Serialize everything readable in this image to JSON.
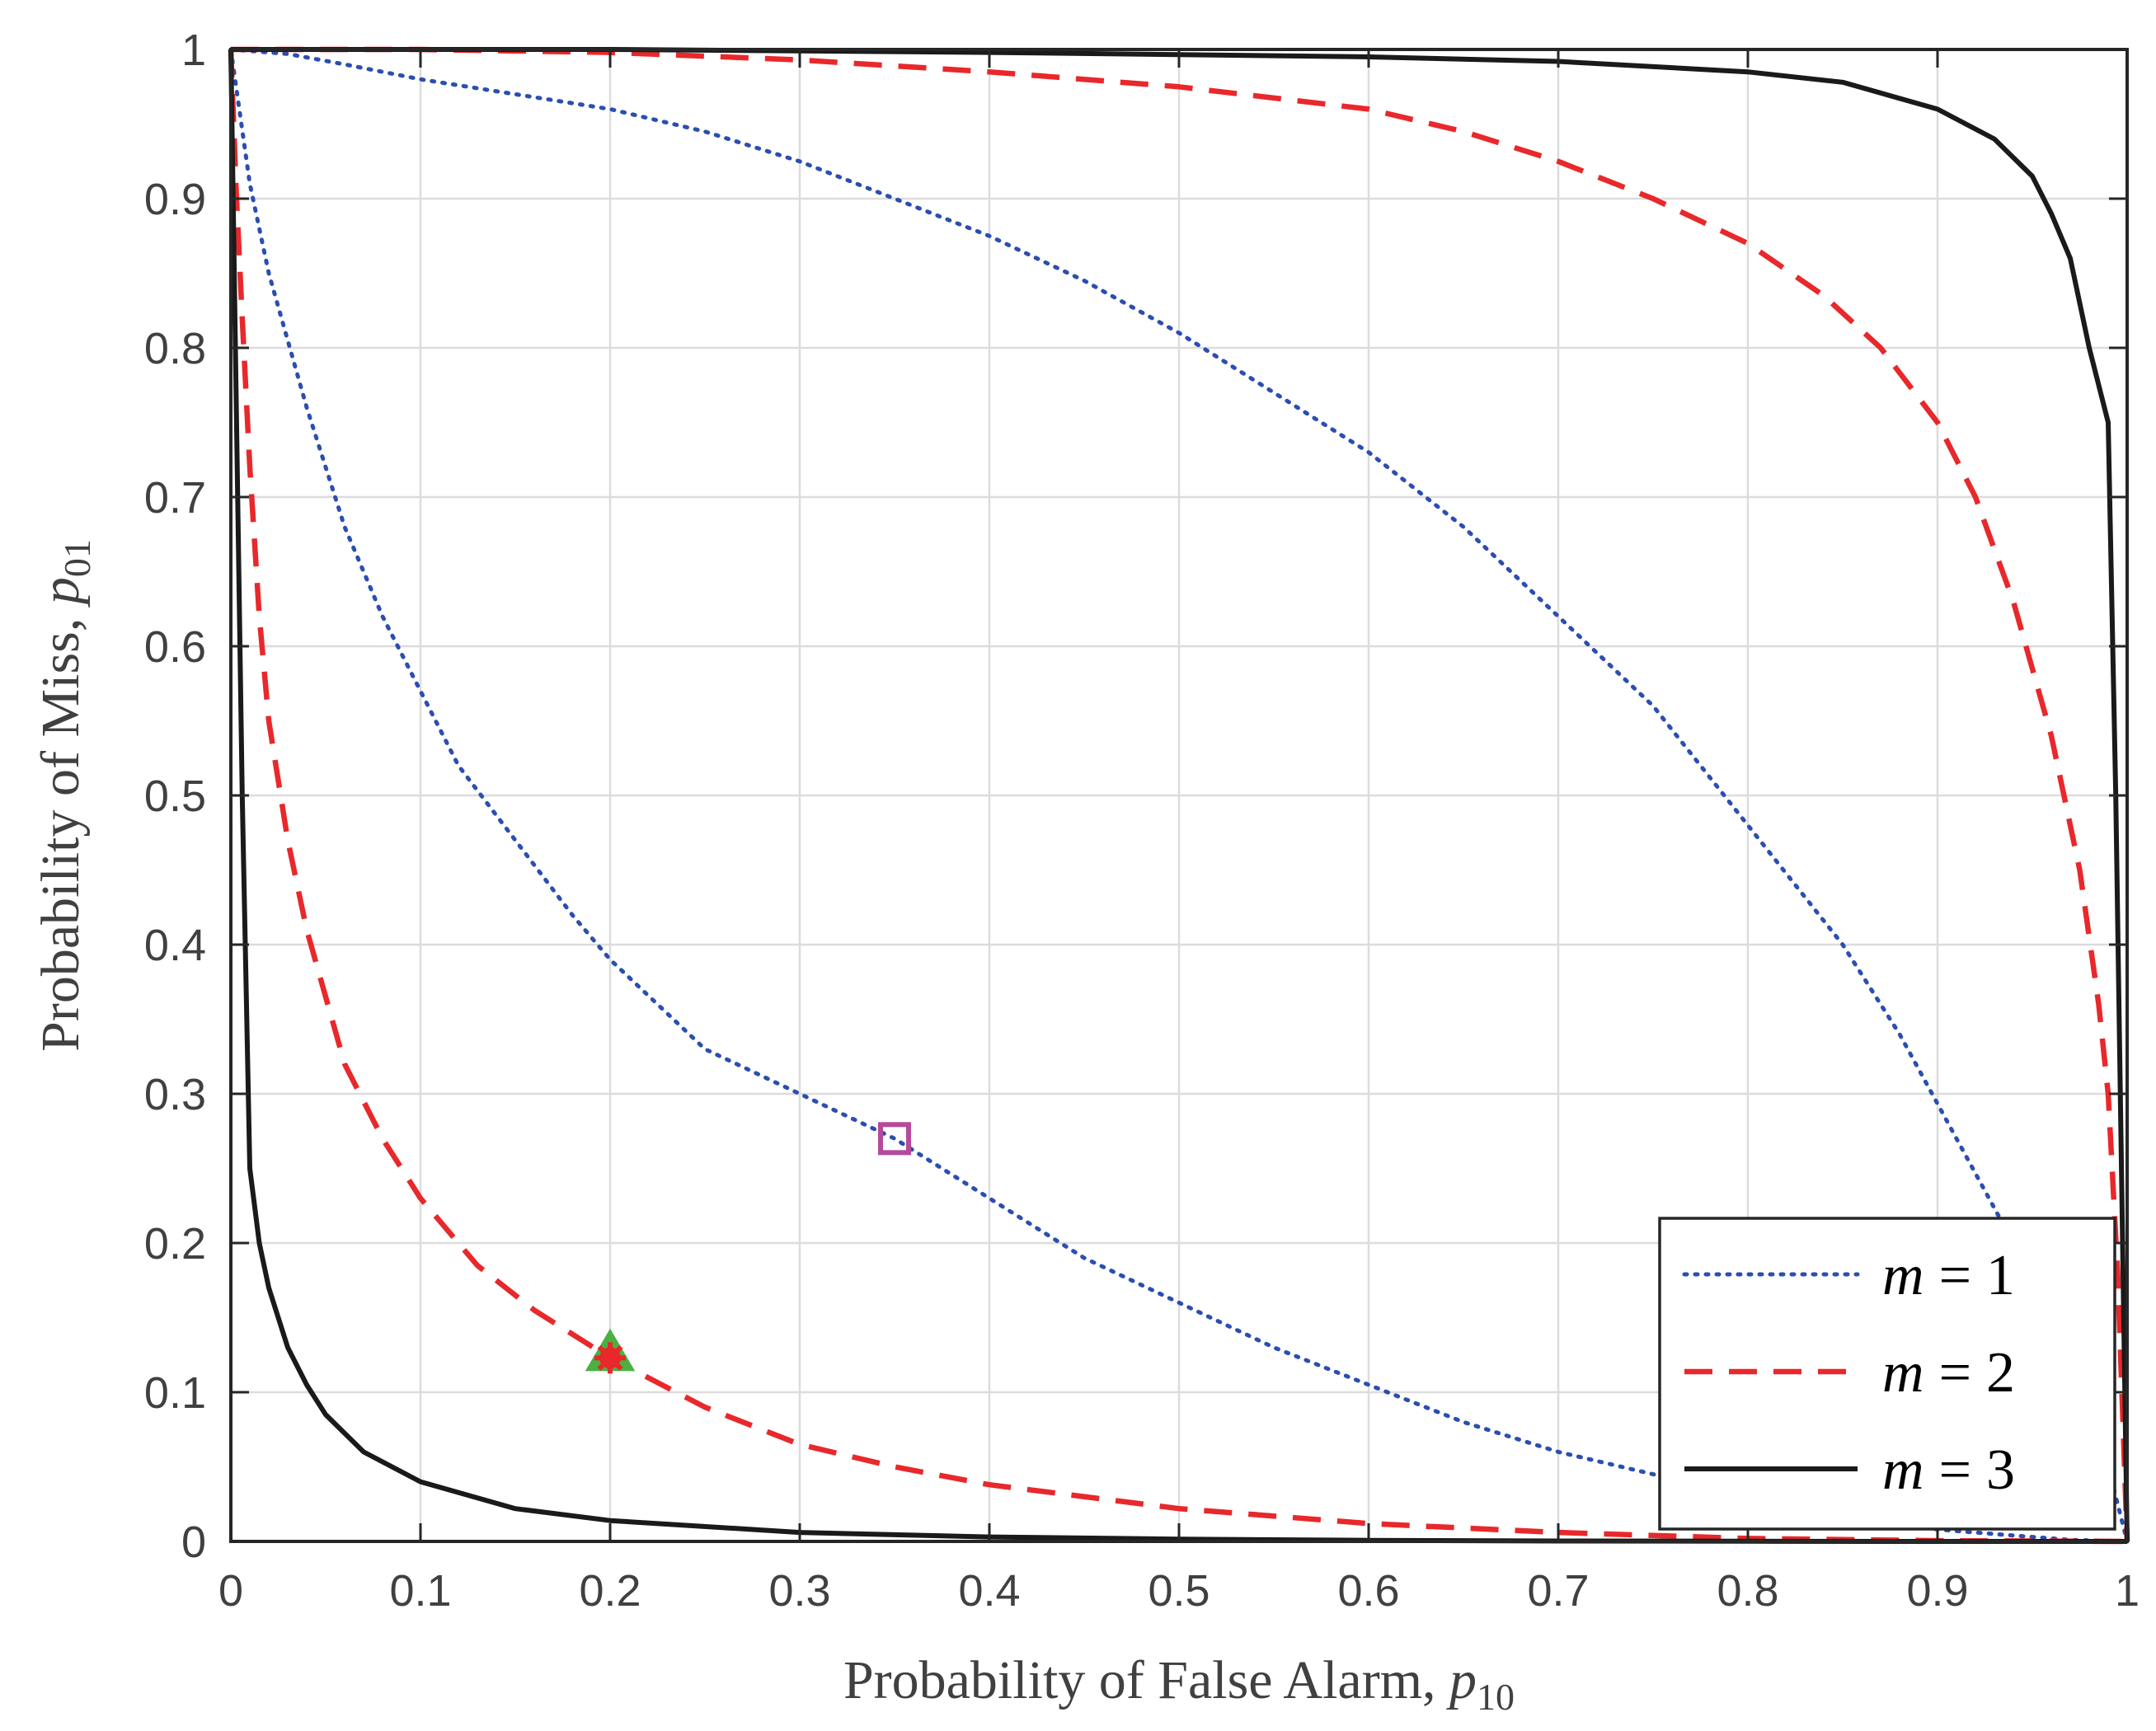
{
  "chart_data": {
    "type": "line",
    "title": "",
    "xlabel": {
      "text": "Probability of False Alarm, ",
      "math": "p",
      "sub": "10"
    },
    "ylabel": {
      "text": "Probability of Miss, ",
      "math": "p",
      "sub": "01"
    },
    "xlim": [
      0,
      1
    ],
    "ylim": [
      0,
      1
    ],
    "xticks": [
      0,
      0.1,
      0.2,
      0.3,
      0.4,
      0.5,
      0.6,
      0.7,
      0.8,
      0.9,
      1
    ],
    "yticks": [
      0,
      0.1,
      0.2,
      0.3,
      0.4,
      0.5,
      0.6,
      0.7,
      0.8,
      0.9,
      1
    ],
    "xtick_labels": [
      "0",
      "0.1",
      "0.2",
      "0.3",
      "0.4",
      "0.5",
      "0.6",
      "0.7",
      "0.8",
      "0.9",
      "1"
    ],
    "ytick_labels": [
      "0",
      "0.1",
      "0.2",
      "0.3",
      "0.4",
      "0.5",
      "0.6",
      "0.7",
      "0.8",
      "0.9",
      "1"
    ],
    "grid": true,
    "legend_position": "bottom-right",
    "series": [
      {
        "name": "m = 1",
        "legend": {
          "var": "m",
          "op": "=",
          "val": "1"
        },
        "color": "#2b4eb0",
        "style": "dotted",
        "curves": [
          {
            "x": [
              0,
              0.01,
              0.02,
              0.04,
              0.06,
              0.08,
              0.1,
              0.12,
              0.15,
              0.18,
              0.2,
              0.25,
              0.3,
              0.35,
              0.4,
              0.45,
              0.5,
              0.55,
              0.6,
              0.65,
              0.7,
              0.75,
              0.8,
              0.85,
              0.9,
              0.94,
              0.97,
              1.0
            ],
            "y": [
              1.0,
              0.91,
              0.85,
              0.76,
              0.68,
              0.62,
              0.57,
              0.52,
              0.47,
              0.42,
              0.39,
              0.33,
              0.3,
              0.27,
              0.23,
              0.19,
              0.16,
              0.13,
              0.105,
              0.08,
              0.06,
              0.045,
              0.03,
              0.018,
              0.008,
              0.004,
              0.001,
              0
            ]
          },
          {
            "x": [
              0,
              0.03,
              0.06,
              0.1,
              0.15,
              0.2,
              0.25,
              0.3,
              0.35,
              0.4,
              0.45,
              0.5,
              0.55,
              0.6,
              0.65,
              0.7,
              0.75,
              0.8,
              0.85,
              0.88,
              0.91,
              0.94,
              0.97,
              0.99,
              1.0
            ],
            "y": [
              1.0,
              0.997,
              0.99,
              0.98,
              0.97,
              0.96,
              0.945,
              0.925,
              0.9,
              0.875,
              0.845,
              0.81,
              0.77,
              0.73,
              0.68,
              0.62,
              0.56,
              0.48,
              0.4,
              0.34,
              0.27,
              0.2,
              0.12,
              0.05,
              0
            ]
          }
        ]
      },
      {
        "name": "m = 2",
        "legend": {
          "var": "m",
          "op": "=",
          "val": "2"
        },
        "color": "#e8282b",
        "style": "dashed",
        "curves": [
          {
            "x": [
              0,
              0.003,
              0.006,
              0.01,
              0.015,
              0.02,
              0.03,
              0.04,
              0.06,
              0.08,
              0.1,
              0.13,
              0.16,
              0.2,
              0.25,
              0.3,
              0.35,
              0.4,
              0.5,
              0.6,
              0.7,
              0.8,
              0.9,
              1.0
            ],
            "y": [
              1.0,
              0.9,
              0.82,
              0.72,
              0.62,
              0.55,
              0.47,
              0.41,
              0.32,
              0.27,
              0.23,
              0.185,
              0.155,
              0.123,
              0.09,
              0.065,
              0.05,
              0.038,
              0.022,
              0.012,
              0.006,
              0.002,
              0.0005,
              0
            ]
          },
          {
            "x": [
              0,
              0.1,
              0.2,
              0.3,
              0.4,
              0.5,
              0.6,
              0.65,
              0.7,
              0.75,
              0.8,
              0.84,
              0.87,
              0.9,
              0.92,
              0.94,
              0.96,
              0.975,
              0.985,
              0.99,
              0.995,
              1.0
            ],
            "y": [
              1.0,
              1.0,
              0.998,
              0.993,
              0.985,
              0.975,
              0.96,
              0.945,
              0.925,
              0.9,
              0.87,
              0.835,
              0.8,
              0.75,
              0.7,
              0.63,
              0.54,
              0.45,
              0.36,
              0.3,
              0.18,
              0
            ]
          }
        ]
      },
      {
        "name": "m = 3",
        "legend": {
          "var": "m",
          "op": "=",
          "val": "3"
        },
        "color": "#1a1a1a",
        "style": "solid",
        "curves": [
          {
            "x": [
              0,
              0.003,
              0.006,
              0.01,
              0.015,
              0.02,
              0.03,
              0.04,
              0.05,
              0.07,
              0.1,
              0.15,
              0.2,
              0.3,
              0.4,
              0.5,
              0.6,
              0.7,
              0.8,
              0.9,
              1.0
            ],
            "y": [
              1.0,
              0.75,
              0.5,
              0.25,
              0.2,
              0.17,
              0.13,
              0.105,
              0.085,
              0.06,
              0.04,
              0.022,
              0.014,
              0.006,
              0.003,
              0.0015,
              0.0007,
              0.0003,
              0.0001,
              0,
              0
            ]
          },
          {
            "x": [
              0,
              0.2,
              0.4,
              0.6,
              0.7,
              0.8,
              0.85,
              0.9,
              0.93,
              0.95,
              0.96,
              0.97,
              0.98,
              0.99,
              0.994,
              0.997,
              1.0
            ],
            "y": [
              1.0,
              1.0,
              0.998,
              0.995,
              0.992,
              0.985,
              0.978,
              0.96,
              0.94,
              0.915,
              0.89,
              0.86,
              0.8,
              0.75,
              0.5,
              0.25,
              0
            ]
          }
        ]
      }
    ],
    "markers": [
      {
        "name": "square",
        "x": 0.35,
        "y": 0.27,
        "shape": "square",
        "color": "#b54a9b"
      },
      {
        "name": "triangle",
        "x": 0.2,
        "y": 0.125,
        "shape": "triangle",
        "color": "#4bb043"
      },
      {
        "name": "star",
        "x": 0.2,
        "y": 0.123,
        "shape": "star",
        "color": "#e8282b"
      }
    ]
  }
}
